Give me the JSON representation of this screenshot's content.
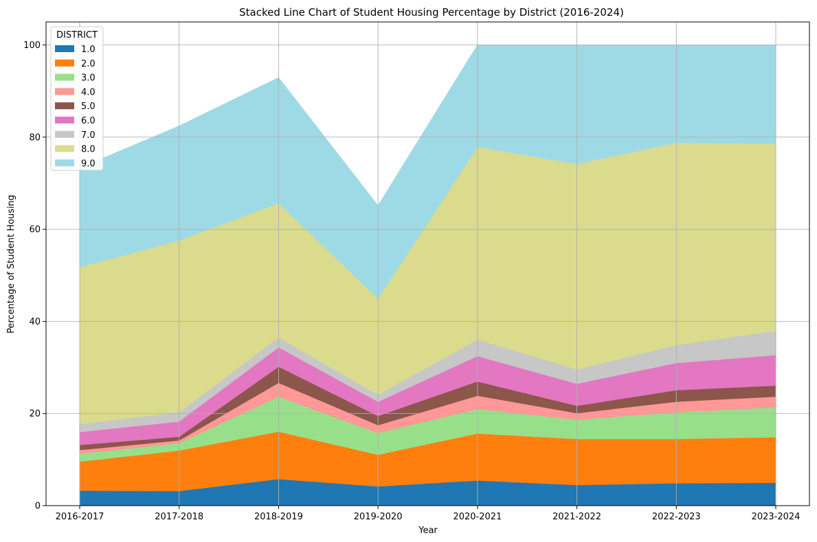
{
  "chart_data": {
    "type": "area",
    "stacked": true,
    "title": "Stacked Line Chart of Student Housing Percentage by District (2016-2024)",
    "xlabel": "Year",
    "ylabel": "Percentage of Student Housing",
    "categories": [
      "2016-2017",
      "2017-2018",
      "2018-2019",
      "2019-2020",
      "2020-2021",
      "2021-2022",
      "2022-2023",
      "2023-2024"
    ],
    "ylim": [
      0,
      105
    ],
    "yticks": [
      0,
      20,
      40,
      60,
      80,
      100
    ],
    "grid": true,
    "legend": {
      "title": "DISTRICT",
      "placement": "top-left"
    },
    "series": [
      {
        "name": "1.0",
        "color": "#1f77b4",
        "values": [
          3.3,
          3.2,
          5.8,
          4.2,
          5.5,
          4.5,
          4.9,
          5.0
        ]
      },
      {
        "name": "2.0",
        "color": "#ff7f0e",
        "values": [
          6.3,
          8.8,
          10.3,
          6.9,
          10.2,
          10.0,
          9.6,
          9.9
        ]
      },
      {
        "name": "3.0",
        "color": "#98df8a",
        "values": [
          1.7,
          1.6,
          7.6,
          4.7,
          5.3,
          4.2,
          5.8,
          6.5
        ]
      },
      {
        "name": "4.0",
        "color": "#ff9896",
        "values": [
          0.8,
          0.6,
          3.0,
          1.7,
          2.9,
          1.4,
          2.3,
          2.3
        ]
      },
      {
        "name": "5.0",
        "color": "#8c564b",
        "values": [
          1.1,
          0.8,
          3.5,
          2.0,
          3.1,
          1.6,
          2.5,
          2.4
        ]
      },
      {
        "name": "6.0",
        "color": "#e377c2",
        "values": [
          2.8,
          3.3,
          4.2,
          3.1,
          5.5,
          4.8,
          5.9,
          6.6
        ]
      },
      {
        "name": "7.0",
        "color": "#c7c7c7",
        "values": [
          1.8,
          2.0,
          2.2,
          1.5,
          3.6,
          3.1,
          3.9,
          5.3
        ]
      },
      {
        "name": "8.0",
        "color": "#dbdb8d",
        "values": [
          34.0,
          37.3,
          29.1,
          20.9,
          41.8,
          44.6,
          43.9,
          40.6
        ]
      },
      {
        "name": "9.0",
        "color": "#9edae5",
        "values": [
          21.5,
          24.8,
          27.2,
          20.1,
          22.1,
          25.8,
          21.2,
          21.4
        ]
      }
    ]
  }
}
